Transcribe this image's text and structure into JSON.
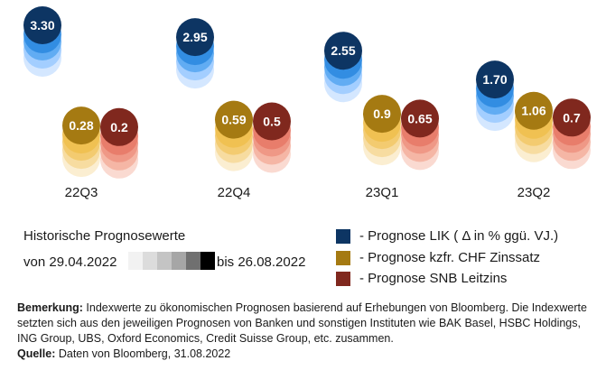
{
  "chart_data": {
    "type": "scatter",
    "categories": [
      "22Q3",
      "22Q4",
      "23Q1",
      "23Q2"
    ],
    "series": [
      {
        "name": "- Prognose LIK ( Δ in % ggü. VJ.)",
        "color": "#0d3563",
        "values": [
          3.3,
          2.95,
          2.55,
          1.7
        ]
      },
      {
        "name": "- Prognose kzfr. CHF Zinssatz",
        "color": "#a57a12",
        "values": [
          0.28,
          0.59,
          0.9,
          1.06
        ]
      },
      {
        "name": "- Prognose SNB Leitzins",
        "color": "#80281e",
        "values": [
          0.2,
          0.5,
          0.65,
          0.7
        ]
      }
    ],
    "value_labels": [
      [
        "3.30",
        "2.95",
        "2.55",
        "1.70"
      ],
      [
        "0.28",
        "0.59",
        "0.9",
        "1.06"
      ],
      [
        "0.2",
        "0.5",
        "0.65",
        "0.7"
      ]
    ],
    "history_shades": {
      "lik": [
        "#cfe4ff",
        "#9dcbff",
        "#5aa9f2",
        "#2d8ae0",
        "#1662b4"
      ],
      "chf": [
        "#fbeccc",
        "#f6d99a",
        "#f2c96a",
        "#efc04f",
        "#e2b13c"
      ],
      "snb": [
        "#fad6cc",
        "#f4b1a0",
        "#ee9583",
        "#e77a68",
        "#dd6a57"
      ]
    }
  },
  "legend": {
    "history_title": "Historische Prognosewerte",
    "history_from": "von 29.04.2022",
    "history_to": "bis 26.08.2022",
    "history_gradient": [
      "#f2f2f2",
      "#dcdcdc",
      "#c4c4c4",
      "#a6a6a6",
      "#707070",
      "#000000"
    ],
    "items": [
      {
        "label": "- Prognose LIK ( Δ in % ggü. VJ.)",
        "color": "#0d3563"
      },
      {
        "label": "- Prognose kzfr. CHF Zinssatz",
        "color": "#a57a12"
      },
      {
        "label": "- Prognose SNB Leitzins",
        "color": "#80281e"
      }
    ]
  },
  "notes": {
    "remark_label": "Bemerkung:",
    "remark_text": " Indexwerte zu ökonomischen Prognosen basierend auf Erhebungen von Bloomberg. Die Indexwerte setzten sich aus den jeweiligen Prognosen von Banken und sonstigen Instituten wie BAK Basel, HSBC Holdings, ING Group, UBS, Oxford Economics, Credit Suisse Group, etc. zusammen.",
    "source_label": "Quelle:",
    "source_text": " Daten von Bloomberg, 31.08.2022"
  }
}
